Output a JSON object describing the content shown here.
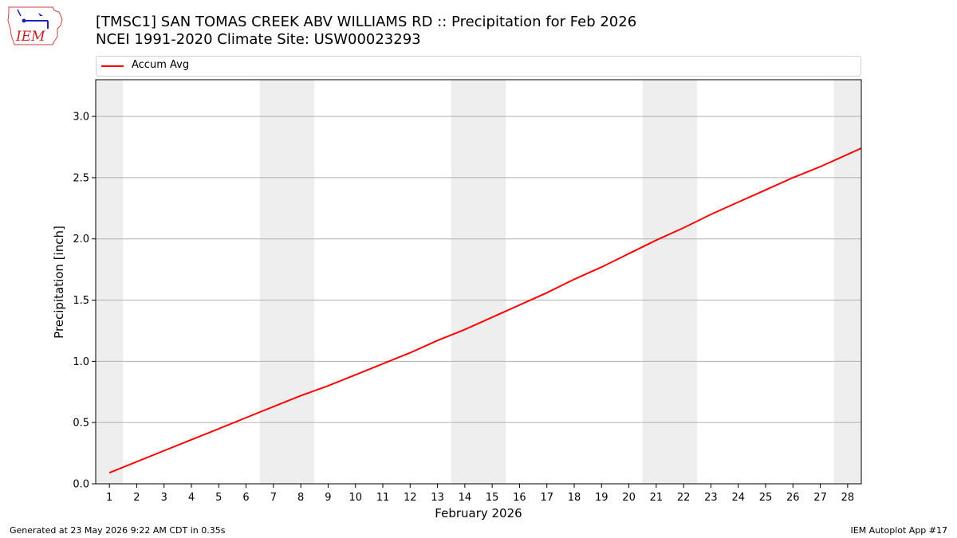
{
  "header": {
    "logo_text": "IEM",
    "title_line1": "[TMSC1] SAN TOMAS CREEK ABV WILLIAMS RD :: Precipitation for Feb 2026",
    "title_line2": "NCEI 1991-2020 Climate Site: USW00023293"
  },
  "footer": {
    "generated": "Generated at 23 May 2026 9:22 AM CDT in 0.35s",
    "app": "IEM Autoplot App #17"
  },
  "colors": {
    "series": "#ff0000",
    "weekend_band": "#eeeeee",
    "grid": "#b0b0b0"
  },
  "chart_data": {
    "type": "line",
    "xlabel": "February 2026",
    "ylabel": "Precipitation [inch]",
    "x": [
      1,
      2,
      3,
      4,
      5,
      6,
      7,
      8,
      9,
      10,
      11,
      12,
      13,
      14,
      15,
      16,
      17,
      18,
      19,
      20,
      21,
      22,
      23,
      24,
      25,
      26,
      27,
      28
    ],
    "xlim": [
      0.5,
      28.5
    ],
    "ylim": [
      0,
      3.3
    ],
    "yticks": [
      0.0,
      0.5,
      1.0,
      1.5,
      2.0,
      2.5,
      3.0
    ],
    "grid": "horizontal",
    "legend_position": "top",
    "shaded_days": [
      1,
      7,
      8,
      14,
      15,
      21,
      22,
      28
    ],
    "series": [
      {
        "name": "Accum Avg",
        "color": "#ff0000",
        "values": [
          0.09,
          0.18,
          0.27,
          0.36,
          0.45,
          0.54,
          0.63,
          0.72,
          0.8,
          0.89,
          0.98,
          1.07,
          1.17,
          1.26,
          1.36,
          1.46,
          1.56,
          1.67,
          1.77,
          1.88,
          1.99,
          2.09,
          2.2,
          2.3,
          2.4,
          2.5,
          2.59,
          2.69
        ]
      }
    ]
  }
}
